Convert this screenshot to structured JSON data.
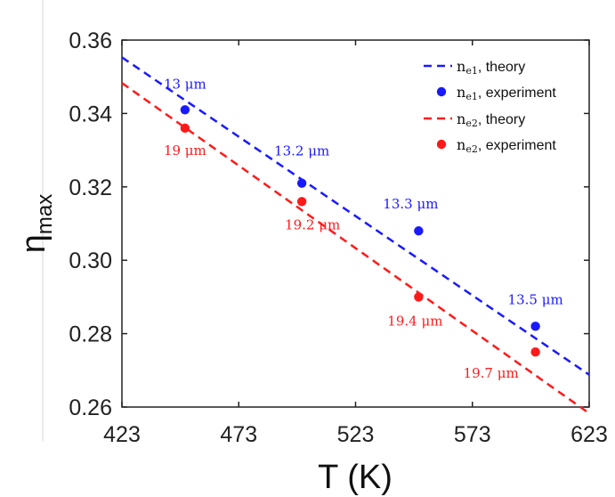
{
  "chart_data": {
    "type": "scatter",
    "title": "",
    "xlabel": "T (K)",
    "ylabel": "η",
    "ylabel_sub": "max",
    "xlim": [
      423,
      623
    ],
    "ylim": [
      0.26,
      0.36
    ],
    "x_ticks": [
      423,
      473,
      523,
      573,
      623
    ],
    "y_ticks": [
      "0.26",
      "0.28",
      "0.30",
      "0.32",
      "0.34",
      "0.36"
    ],
    "grid": false,
    "legend_position": "top-right",
    "series": [
      {
        "name": "n_e1, theory",
        "legend_symbol": "n",
        "legend_subscript": "e1",
        "legend_text": ", theory",
        "kind": "line",
        "style": "dashed",
        "color": "#1a1aff",
        "x": [
          423,
          623
        ],
        "y": [
          0.3553,
          0.2688
        ]
      },
      {
        "name": "n_e1, experiment",
        "legend_symbol": "n",
        "legend_subscript": "e1",
        "legend_text": ", experiment",
        "kind": "points",
        "color": "#1a1aff",
        "x": [
          450,
          500,
          550,
          600
        ],
        "y": [
          0.341,
          0.321,
          0.308,
          0.282
        ],
        "labels": [
          "13 μm",
          "13.2 μm",
          "13.3 μm",
          "13.5 μm"
        ]
      },
      {
        "name": "n_e2, theory",
        "legend_symbol": "n",
        "legend_subscript": "e2",
        "legend_text": ", theory",
        "kind": "line",
        "style": "dashed",
        "color": "#ff1a1a",
        "x": [
          423,
          623
        ],
        "y": [
          0.3483,
          0.2583
        ]
      },
      {
        "name": "n_e2, experiment",
        "legend_symbol": "n",
        "legend_subscript": "e2",
        "legend_text": ", experiment",
        "kind": "points",
        "color": "#ff1a1a",
        "x": [
          450,
          500,
          550,
          600
        ],
        "y": [
          0.336,
          0.316,
          0.29,
          0.275
        ],
        "labels": [
          "19 μm",
          "19.2 μm",
          "19.4 μm",
          "19.7 μm"
        ]
      }
    ]
  }
}
